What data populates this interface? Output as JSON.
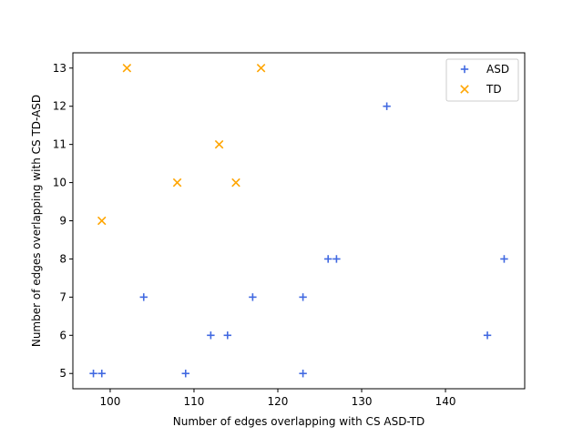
{
  "chart_data": {
    "type": "scatter",
    "title": "",
    "xlabel": "Number of edges overlapping with CS ASD-TD",
    "ylabel": "Number of edges overlapping with CS TD-ASD",
    "xlim": [
      95.55,
      149.45
    ],
    "ylim": [
      4.6,
      13.4
    ],
    "xticks": [
      100,
      110,
      120,
      130,
      140
    ],
    "yticks": [
      5,
      6,
      7,
      8,
      9,
      10,
      11,
      12,
      13
    ],
    "xtick_labels": [
      "100",
      "110",
      "120",
      "130",
      "140"
    ],
    "ytick_labels": [
      "5",
      "6",
      "7",
      "8",
      "9",
      "10",
      "11",
      "12",
      "13"
    ],
    "grid": false,
    "legend_position": "top-right",
    "series": [
      {
        "name": "ASD",
        "marker": "plus",
        "color": "#4169e1",
        "points": [
          {
            "x": 98,
            "y": 5
          },
          {
            "x": 99,
            "y": 5
          },
          {
            "x": 104,
            "y": 7
          },
          {
            "x": 109,
            "y": 5
          },
          {
            "x": 112,
            "y": 6
          },
          {
            "x": 114,
            "y": 6
          },
          {
            "x": 117,
            "y": 7
          },
          {
            "x": 123,
            "y": 7
          },
          {
            "x": 123,
            "y": 5
          },
          {
            "x": 126,
            "y": 8
          },
          {
            "x": 127,
            "y": 8
          },
          {
            "x": 133,
            "y": 12
          },
          {
            "x": 145,
            "y": 6
          },
          {
            "x": 147,
            "y": 8
          }
        ]
      },
      {
        "name": "TD",
        "marker": "x",
        "color": "#ffa500",
        "points": [
          {
            "x": 99,
            "y": 9
          },
          {
            "x": 102,
            "y": 13
          },
          {
            "x": 108,
            "y": 10
          },
          {
            "x": 113,
            "y": 11
          },
          {
            "x": 115,
            "y": 10
          },
          {
            "x": 118,
            "y": 13
          }
        ]
      }
    ]
  }
}
